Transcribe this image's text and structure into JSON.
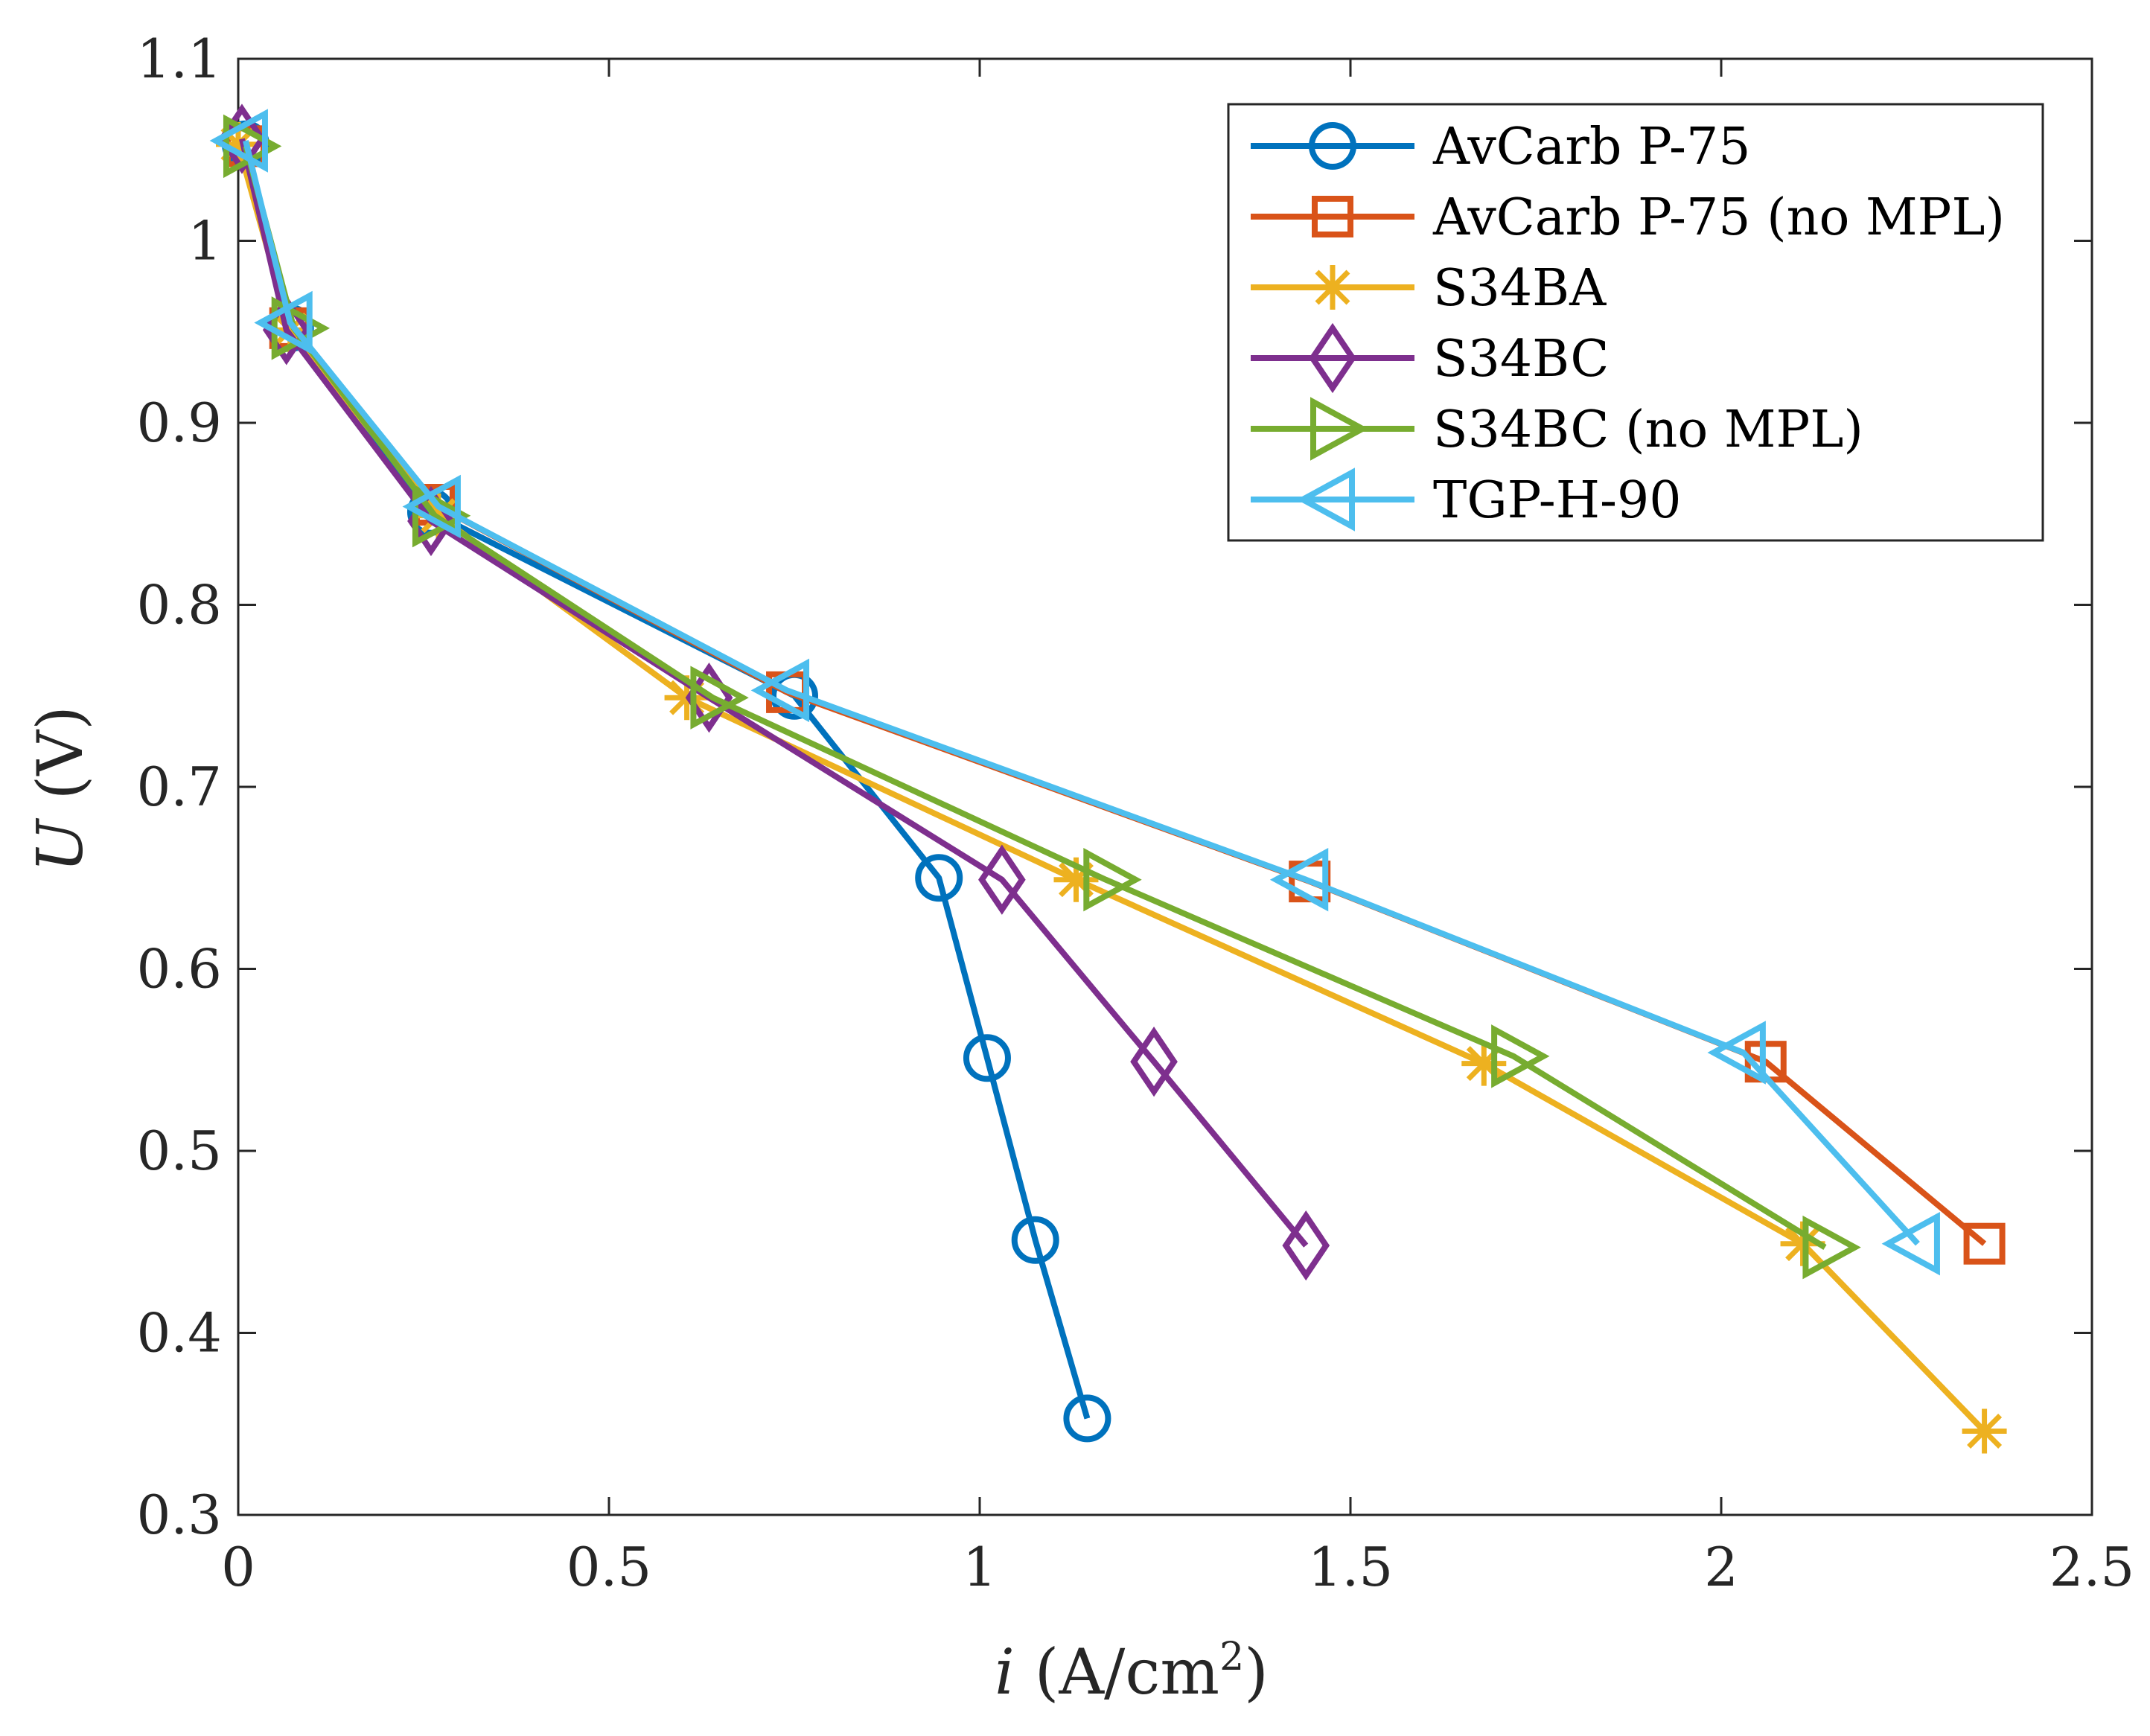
{
  "chart_data": {
    "type": "line",
    "xlabel": {
      "var": "i",
      "unit": "(A/cm",
      "sup": "2",
      "close": ")"
    },
    "ylabel": {
      "var": "U",
      "unit": "(V)"
    },
    "xlim": [
      0,
      2.5
    ],
    "ylim": [
      0.3,
      1.1
    ],
    "xticks": [
      {
        "value": 0,
        "label": "0"
      },
      {
        "value": 0.5,
        "label": "0.5"
      },
      {
        "value": 1,
        "label": "1"
      },
      {
        "value": 1.5,
        "label": "1.5"
      },
      {
        "value": 2,
        "label": "2"
      },
      {
        "value": 2.5,
        "label": "2.5"
      }
    ],
    "yticks": [
      {
        "value": 0.3,
        "label": "0.3"
      },
      {
        "value": 0.4,
        "label": "0.4"
      },
      {
        "value": 0.5,
        "label": "0.5"
      },
      {
        "value": 0.6,
        "label": "0.6"
      },
      {
        "value": 0.7,
        "label": "0.7"
      },
      {
        "value": 0.8,
        "label": "0.8"
      },
      {
        "value": 0.9,
        "label": "0.9"
      },
      {
        "value": 1,
        "label": "1"
      },
      {
        "value": 1.1,
        "label": "1.1"
      }
    ],
    "legend_position": "top-right",
    "grid": false,
    "series": [
      {
        "name": "AvCarb P-75",
        "color": "#0072BD",
        "marker": "circle",
        "points": [
          [
            0.01,
            1.053
          ],
          [
            0.07,
            0.952
          ],
          [
            0.26,
            0.851
          ],
          [
            0.75,
            0.75
          ],
          [
            0.945,
            0.65
          ],
          [
            1.01,
            0.551
          ],
          [
            1.075,
            0.451
          ],
          [
            1.145,
            0.353
          ]
        ]
      },
      {
        "name": "AvCarb P-75 (no MPL)",
        "color": "#D95319",
        "marker": "square",
        "points": [
          [
            0.01,
            1.052
          ],
          [
            0.07,
            0.952
          ],
          [
            0.265,
            0.855
          ],
          [
            0.74,
            0.752
          ],
          [
            1.445,
            0.648
          ],
          [
            2.06,
            0.549
          ],
          [
            2.355,
            0.449
          ]
        ]
      },
      {
        "name": "S34BA",
        "color": "#EDB120",
        "marker": "asterisk",
        "points": [
          [
            0.0,
            1.053
          ],
          [
            0.07,
            0.951
          ],
          [
            0.27,
            0.849
          ],
          [
            0.605,
            0.749
          ],
          [
            1.13,
            0.649
          ],
          [
            1.68,
            0.548
          ],
          [
            2.11,
            0.449
          ],
          [
            2.355,
            0.346
          ]
        ]
      },
      {
        "name": "S34BC",
        "color": "#7E2F8E",
        "marker": "diamond",
        "points": [
          [
            0.005,
            1.056
          ],
          [
            0.065,
            0.951
          ],
          [
            0.26,
            0.846
          ],
          [
            0.635,
            0.749
          ],
          [
            1.03,
            0.649
          ],
          [
            1.235,
            0.549
          ],
          [
            1.44,
            0.448
          ]
        ]
      },
      {
        "name": "S34BC (no MPL)",
        "color": "#77AC30",
        "marker": "triangle-right",
        "points": [
          [
            0.01,
            1.052
          ],
          [
            0.075,
            0.952
          ],
          [
            0.265,
            0.849
          ],
          [
            0.64,
            0.749
          ],
          [
            1.17,
            0.649
          ],
          [
            1.72,
            0.552
          ],
          [
            2.14,
            0.447
          ]
        ]
      },
      {
        "name": "TGP-H-90",
        "color": "#4DBEEE",
        "marker": "triangle-left",
        "points": [
          [
            0.01,
            1.055
          ],
          [
            0.07,
            0.955
          ],
          [
            0.27,
            0.854
          ],
          [
            0.74,
            0.753
          ],
          [
            1.44,
            0.649
          ],
          [
            2.03,
            0.554
          ],
          [
            2.265,
            0.449
          ]
        ]
      }
    ]
  }
}
